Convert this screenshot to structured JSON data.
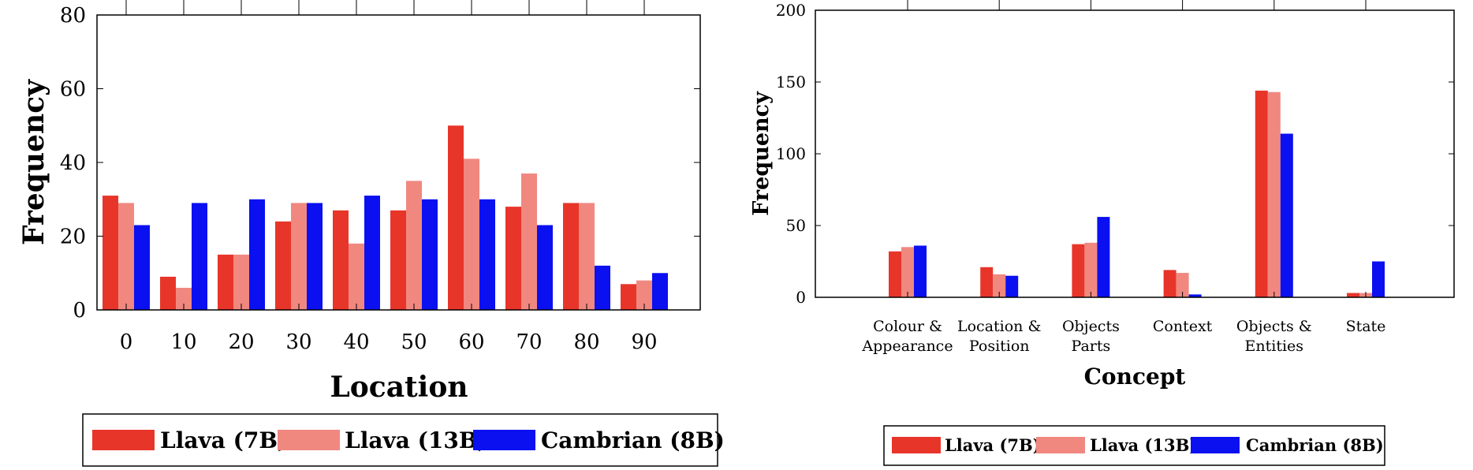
{
  "chart_data": [
    {
      "type": "bar",
      "x": [
        0,
        10,
        20,
        30,
        40,
        50,
        60,
        70,
        80,
        90
      ],
      "series": [
        {
          "name": "Llava (7B)",
          "color": "#e8352a",
          "values": [
            31,
            9,
            15,
            24,
            27,
            27,
            50,
            28,
            29,
            7
          ]
        },
        {
          "name": "Llava (13B)",
          "color": "#f08880",
          "values": [
            29,
            6,
            15,
            29,
            18,
            35,
            41,
            37,
            29,
            8
          ]
        },
        {
          "name": "Cambrian (8B)",
          "color": "#0a10f0",
          "values": [
            23,
            29,
            30,
            29,
            31,
            30,
            30,
            23,
            12,
            10
          ]
        }
      ],
      "xlabel": "Location",
      "ylabel": "Frequency",
      "ylim": [
        0,
        80
      ],
      "yticks": [
        0,
        20,
        40,
        60,
        80
      ],
      "grid": false,
      "legend_position": "bottom"
    },
    {
      "type": "bar",
      "categories": [
        [
          "Colour &",
          "Appearance"
        ],
        [
          "Location &",
          "Position"
        ],
        [
          "Objects",
          "Parts"
        ],
        [
          "Context"
        ],
        [
          "Objects &",
          "Entities"
        ],
        [
          "State"
        ]
      ],
      "series": [
        {
          "name": "Llava (7B)",
          "color": "#e8352a",
          "values": [
            32,
            21,
            37,
            19,
            144,
            3
          ]
        },
        {
          "name": "Llava (13B)",
          "color": "#f08880",
          "values": [
            35,
            16,
            38,
            17,
            143,
            3
          ]
        },
        {
          "name": "Cambrian (8B)",
          "color": "#0a10f0",
          "values": [
            36,
            15,
            56,
            2,
            114,
            25
          ]
        }
      ],
      "xlabel": "Concept",
      "ylabel": "Frequency",
      "ylim": [
        0,
        200
      ],
      "yticks": [
        0,
        50,
        100,
        150,
        200
      ],
      "grid": false,
      "legend_position": "bottom"
    }
  ]
}
